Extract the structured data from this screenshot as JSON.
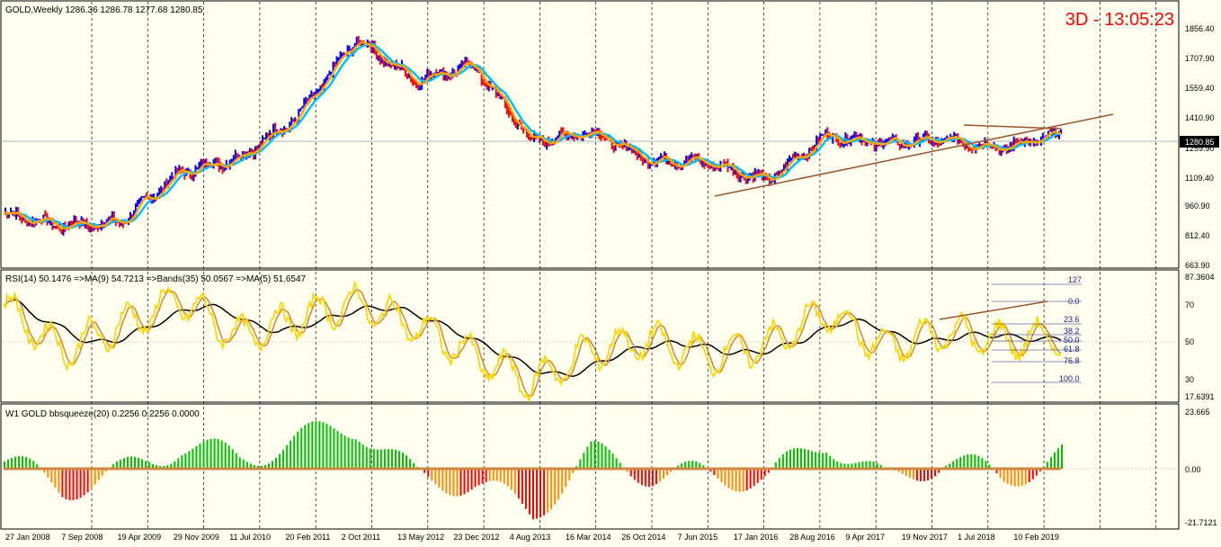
{
  "main_panel": {
    "title": "GOLD,Weekly  1286.36 1286.78 1277.68 1280.85",
    "timer": "3D - 13:05:23",
    "price_axis": [
      "1856.40",
      "1707.90",
      "1559.40",
      "1410.90",
      "1259.90",
      "1109.40",
      "960.90",
      "812.40",
      "663.90"
    ],
    "current_price": "1280.85"
  },
  "rsi_panel": {
    "title": "RSI(14) 50.1476  =>MA(9) 54.7213  =>Bands(35) 50.0567  =>MA(5) 51.6547",
    "axis": [
      "87.3604",
      "70",
      "50",
      "30",
      "17.6391"
    ],
    "fib_levels": [
      "127",
      "0.0",
      "23.6",
      "38.2",
      "50.0",
      "61.8",
      "76.8",
      "100.0"
    ]
  },
  "squeeze_panel": {
    "title": "W1 GOLD bbsqueeze(20) 0.2256 0.2256 0.0000",
    "axis": [
      "23.665",
      "0.00",
      "-21.7121"
    ]
  },
  "time_axis": [
    "27 Jan 2008",
    "7 Sep 2008",
    "19 Apr 2009",
    "29 Nov 2009",
    "11 Jul 2010",
    "20 Feb 2011",
    "2 Oct 2011",
    "13 May 2012",
    "23 Dec 2012",
    "4 Aug 2013",
    "16 Mar 2014",
    "26 Oct 2014",
    "7 Jun 2015",
    "17 Jan 2016",
    "28 Aug 2016",
    "9 Apr 2017",
    "19 Nov 2017",
    "1 Jul 2018",
    "10 Feb 2019"
  ],
  "chart_data": {
    "type": "line",
    "title": "GOLD,Weekly",
    "x": [
      "27 Jan 2008",
      "7 Sep 2008",
      "19 Apr 2009",
      "29 Nov 2009",
      "11 Jul 2010",
      "20 Feb 2011",
      "2 Oct 2011",
      "13 May 2012",
      "23 Dec 2012",
      "4 Aug 2013",
      "16 Mar 2014",
      "26 Oct 2014",
      "7 Jun 2015",
      "17 Jan 2016",
      "28 Aug 2016",
      "9 Apr 2017",
      "19 Nov 2017",
      "1 Jul 2018",
      "10 Feb 2019"
    ],
    "series": [
      {
        "name": "GOLD",
        "values": [
          930,
          870,
          890,
          1130,
          1200,
          1400,
          1780,
          1580,
          1650,
          1280,
          1330,
          1190,
          1180,
          1090,
          1310,
          1270,
          1290,
          1250,
          1315
        ]
      },
      {
        "name": "RSI(14)",
        "values": [
          68,
          45,
          58,
          72,
          52,
          62,
          70,
          58,
          42,
          28,
          45,
          50,
          42,
          48,
          65,
          46,
          55,
          50,
          52
        ]
      },
      {
        "name": "bbsqueeze(20)",
        "values": [
          3,
          -8,
          -2,
          10,
          4,
          12,
          18,
          -4,
          -6,
          -18,
          6,
          -2,
          -3,
          -4,
          12,
          -6,
          4,
          -4,
          5
        ]
      }
    ],
    "ylim": [
      663.9,
      1900
    ],
    "colors": {
      "bull": "#0000ff",
      "bear": "#ff0000",
      "ma_fast": "#ffa500",
      "ma_slow": "#00bfff",
      "trend": "#a0522d",
      "rsi": "#ffd700",
      "rsi_ma": "#cd853f",
      "rsi_bands": "#000000",
      "sq_pos": "#00c000",
      "sq_neg": "#ff0000",
      "sq_neg_alt": "#ff8c00"
    }
  }
}
